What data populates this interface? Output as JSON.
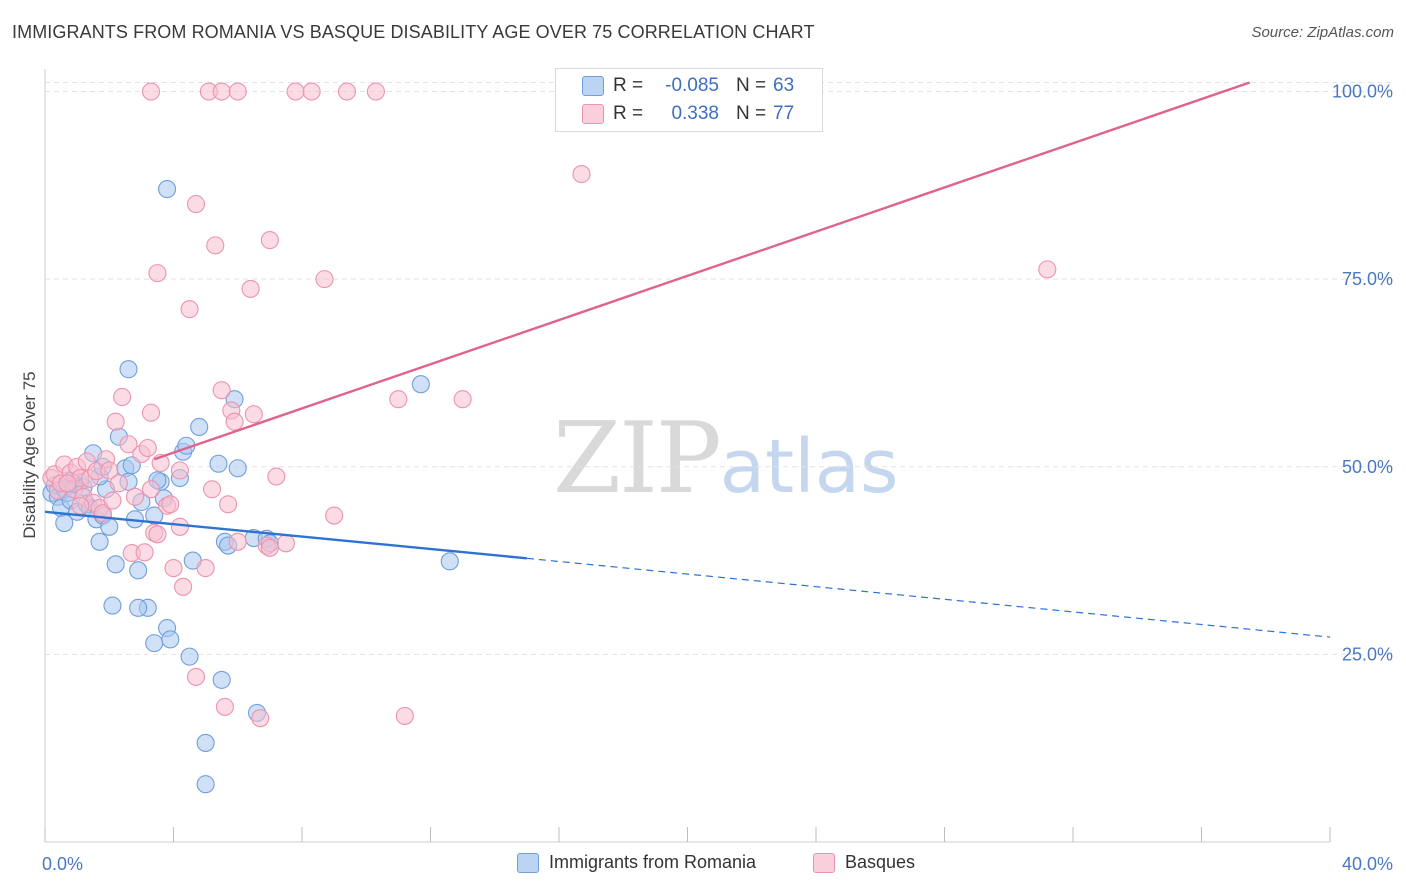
{
  "title": "IMMIGRANTS FROM ROMANIA VS BASQUE DISABILITY AGE OVER 75 CORRELATION CHART",
  "source": "Source: ZipAtlas.com",
  "watermark": {
    "zip": "ZIP",
    "atlas": "atlas"
  },
  "colors": {
    "romania_fill": "#a9c8f0",
    "romania_stroke": "#6f9fdc",
    "romania_line": "#2e72d2",
    "basque_fill": "#f7bfd0",
    "basque_stroke": "#ec93ae",
    "basque_line": "#e0628f",
    "axis_text": "#4a78c0",
    "grid": "#e3e3e3"
  },
  "legend_top": [
    {
      "r_label": "R =",
      "r_value": "-0.085",
      "n_label": "N =",
      "n_value": "63"
    },
    {
      "r_label": "R =",
      "r_value": "0.338",
      "n_label": "N =",
      "n_value": "77"
    }
  ],
  "legend_bottom": [
    "Immigrants from Romania",
    "Basques"
  ],
  "chart_data": {
    "type": "scatter",
    "title": "IMMIGRANTS FROM ROMANIA VS BASQUE DISABILITY AGE OVER 75 CORRELATION CHART",
    "xlabel": "",
    "ylabel": "Disability Age Over 75",
    "xlim": [
      0,
      40
    ],
    "ylim": [
      0,
      103
    ],
    "x_tick_labels": [
      "0.0%",
      "40.0%"
    ],
    "y_ticks": [
      25,
      50,
      75,
      100
    ],
    "y_tick_labels": [
      "25.0%",
      "50.0%",
      "75.0%",
      "100.0%"
    ],
    "grid": true,
    "legend_position": "top-center",
    "series": [
      {
        "name": "Immigrants from Romania",
        "R": -0.085,
        "N": 63,
        "trend": {
          "x": [
            0,
            15
          ],
          "y": [
            44.0,
            37.8
          ],
          "dashed_to_x": 40,
          "dashed_to_y": 27.3
        },
        "points": [
          [
            0.2,
            46.5
          ],
          [
            0.3,
            47.5
          ],
          [
            0.4,
            46.0
          ],
          [
            0.5,
            44.5
          ],
          [
            0.6,
            47.0
          ],
          [
            0.7,
            46.5
          ],
          [
            0.8,
            45.5
          ],
          [
            0.9,
            47.8
          ],
          [
            1.0,
            44.0
          ],
          [
            1.1,
            48.0
          ],
          [
            1.2,
            47.3
          ],
          [
            0.6,
            42.5
          ],
          [
            1.3,
            45.0
          ],
          [
            1.5,
            51.8
          ],
          [
            1.6,
            43.0
          ],
          [
            1.4,
            44.5
          ],
          [
            1.7,
            40.0
          ],
          [
            1.8,
            43.5
          ],
          [
            1.9,
            47.0
          ],
          [
            1.7,
            48.7
          ],
          [
            2.0,
            42.0
          ],
          [
            2.1,
            31.5
          ],
          [
            2.2,
            37.0
          ],
          [
            1.8,
            50.0
          ],
          [
            2.3,
            54.0
          ],
          [
            2.5,
            49.8
          ],
          [
            2.6,
            63.0
          ],
          [
            2.7,
            50.2
          ],
          [
            2.8,
            43.0
          ],
          [
            2.6,
            48.0
          ],
          [
            2.9,
            36.2
          ],
          [
            3.0,
            45.3
          ],
          [
            3.2,
            31.2
          ],
          [
            2.9,
            31.2
          ],
          [
            3.4,
            43.5
          ],
          [
            3.4,
            26.5
          ],
          [
            3.6,
            48.0
          ],
          [
            3.7,
            45.8
          ],
          [
            3.8,
            28.5
          ],
          [
            3.9,
            27.0
          ],
          [
            4.2,
            48.5
          ],
          [
            4.3,
            52.0
          ],
          [
            4.5,
            24.7
          ],
          [
            3.5,
            48.2
          ],
          [
            4.4,
            52.8
          ],
          [
            4.6,
            37.5
          ],
          [
            3.8,
            87.0
          ],
          [
            4.8,
            55.3
          ],
          [
            5.0,
            13.2
          ],
          [
            5.0,
            7.7
          ],
          [
            5.4,
            50.4
          ],
          [
            5.5,
            21.6
          ],
          [
            5.6,
            40.0
          ],
          [
            5.7,
            39.5
          ],
          [
            5.9,
            59.0
          ],
          [
            6.0,
            49.8
          ],
          [
            6.5,
            40.5
          ],
          [
            6.9,
            40.4
          ],
          [
            6.6,
            17.2
          ],
          [
            7.0,
            39.8
          ],
          [
            11.7,
            61.0
          ],
          [
            12.6,
            37.4
          ],
          [
            0.8,
            48.1
          ]
        ]
      },
      {
        "name": "Basques",
        "R": 0.338,
        "N": 77,
        "trend": {
          "x": [
            3.4,
            37.5
          ],
          "y": [
            51.0,
            101.2
          ]
        },
        "points": [
          [
            0.2,
            48.5
          ],
          [
            0.3,
            49.0
          ],
          [
            0.4,
            46.8
          ],
          [
            0.5,
            47.8
          ],
          [
            0.6,
            50.3
          ],
          [
            0.8,
            49.2
          ],
          [
            0.9,
            47.0
          ],
          [
            1.0,
            50.0
          ],
          [
            1.1,
            48.5
          ],
          [
            1.2,
            46.0
          ],
          [
            1.3,
            50.7
          ],
          [
            1.4,
            48.4
          ],
          [
            1.5,
            45.2
          ],
          [
            1.6,
            49.4
          ],
          [
            1.7,
            44.5
          ],
          [
            1.8,
            43.8
          ],
          [
            1.9,
            51.0
          ],
          [
            2.0,
            49.5
          ],
          [
            2.1,
            45.5
          ],
          [
            2.2,
            56.0
          ],
          [
            2.4,
            59.3
          ],
          [
            2.6,
            53.0
          ],
          [
            2.8,
            46.0
          ],
          [
            3.0,
            51.7
          ],
          [
            2.7,
            38.5
          ],
          [
            3.1,
            38.6
          ],
          [
            3.2,
            52.5
          ],
          [
            3.3,
            47.0
          ],
          [
            3.4,
            41.2
          ],
          [
            3.5,
            41.0
          ],
          [
            3.6,
            50.5
          ],
          [
            3.3,
            57.2
          ],
          [
            3.8,
            44.8
          ],
          [
            3.9,
            45.0
          ],
          [
            4.0,
            36.5
          ],
          [
            4.2,
            42.0
          ],
          [
            4.3,
            34.0
          ],
          [
            3.5,
            75.8
          ],
          [
            4.5,
            71.0
          ],
          [
            4.7,
            85.0
          ],
          [
            4.7,
            22.0
          ],
          [
            5.0,
            36.5
          ],
          [
            5.2,
            47.0
          ],
          [
            5.3,
            79.5
          ],
          [
            5.6,
            18.0
          ],
          [
            5.7,
            45.0
          ],
          [
            5.8,
            57.5
          ],
          [
            5.9,
            56.0
          ],
          [
            6.0,
            40.0
          ],
          [
            6.4,
            73.7
          ],
          [
            6.5,
            57.0
          ],
          [
            6.7,
            16.5
          ],
          [
            6.9,
            39.5
          ],
          [
            7.0,
            39.2
          ],
          [
            7.2,
            48.7
          ],
          [
            7.5,
            39.8
          ],
          [
            5.5,
            60.2
          ],
          [
            3.3,
            100
          ],
          [
            5.1,
            100
          ],
          [
            5.5,
            100
          ],
          [
            6.0,
            100
          ],
          [
            7.0,
            80.2
          ],
          [
            7.8,
            100
          ],
          [
            8.3,
            100
          ],
          [
            8.7,
            75.0
          ],
          [
            9.4,
            100
          ],
          [
            9.0,
            43.5
          ],
          [
            10.3,
            100
          ],
          [
            11.0,
            59.0
          ],
          [
            11.2,
            16.8
          ],
          [
            13.0,
            59.0
          ],
          [
            16.7,
            89.0
          ],
          [
            31.2,
            76.3
          ],
          [
            4.2,
            49.5
          ],
          [
            2.3,
            47.8
          ],
          [
            1.1,
            44.8
          ],
          [
            0.7,
            47.8
          ]
        ]
      }
    ]
  }
}
